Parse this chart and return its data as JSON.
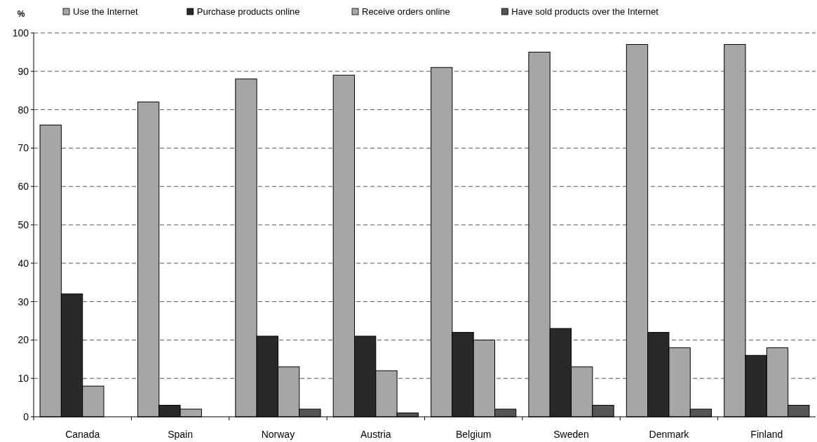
{
  "chart_data": {
    "type": "bar",
    "ylabel": "%",
    "categories": [
      "Canada",
      "Spain",
      "Norway",
      "Austria",
      "Belgium",
      "Sweden",
      "Denmark",
      "Finland"
    ],
    "series": [
      {
        "name": "Use the Internet",
        "color": "#a6a6a6",
        "values": [
          76,
          82,
          88,
          89,
          91,
          95,
          97,
          97
        ]
      },
      {
        "name": "Purchase products online",
        "color": "#292929",
        "values": [
          32,
          3,
          21,
          21,
          22,
          23,
          22,
          16
        ]
      },
      {
        "name": "Receive orders online",
        "color": "#a6a6a6",
        "values": [
          8,
          2,
          13,
          12,
          20,
          13,
          18,
          18
        ]
      },
      {
        "name": "Have sold products over the Internet",
        "color": "#555555",
        "values": [
          null,
          null,
          2,
          1,
          2,
          3,
          2,
          3
        ]
      }
    ],
    "ylim": [
      0,
      100
    ],
    "yticks": [
      0,
      10,
      20,
      30,
      40,
      50,
      60,
      70,
      80,
      90,
      100
    ],
    "grid": "y",
    "legend": "top"
  }
}
